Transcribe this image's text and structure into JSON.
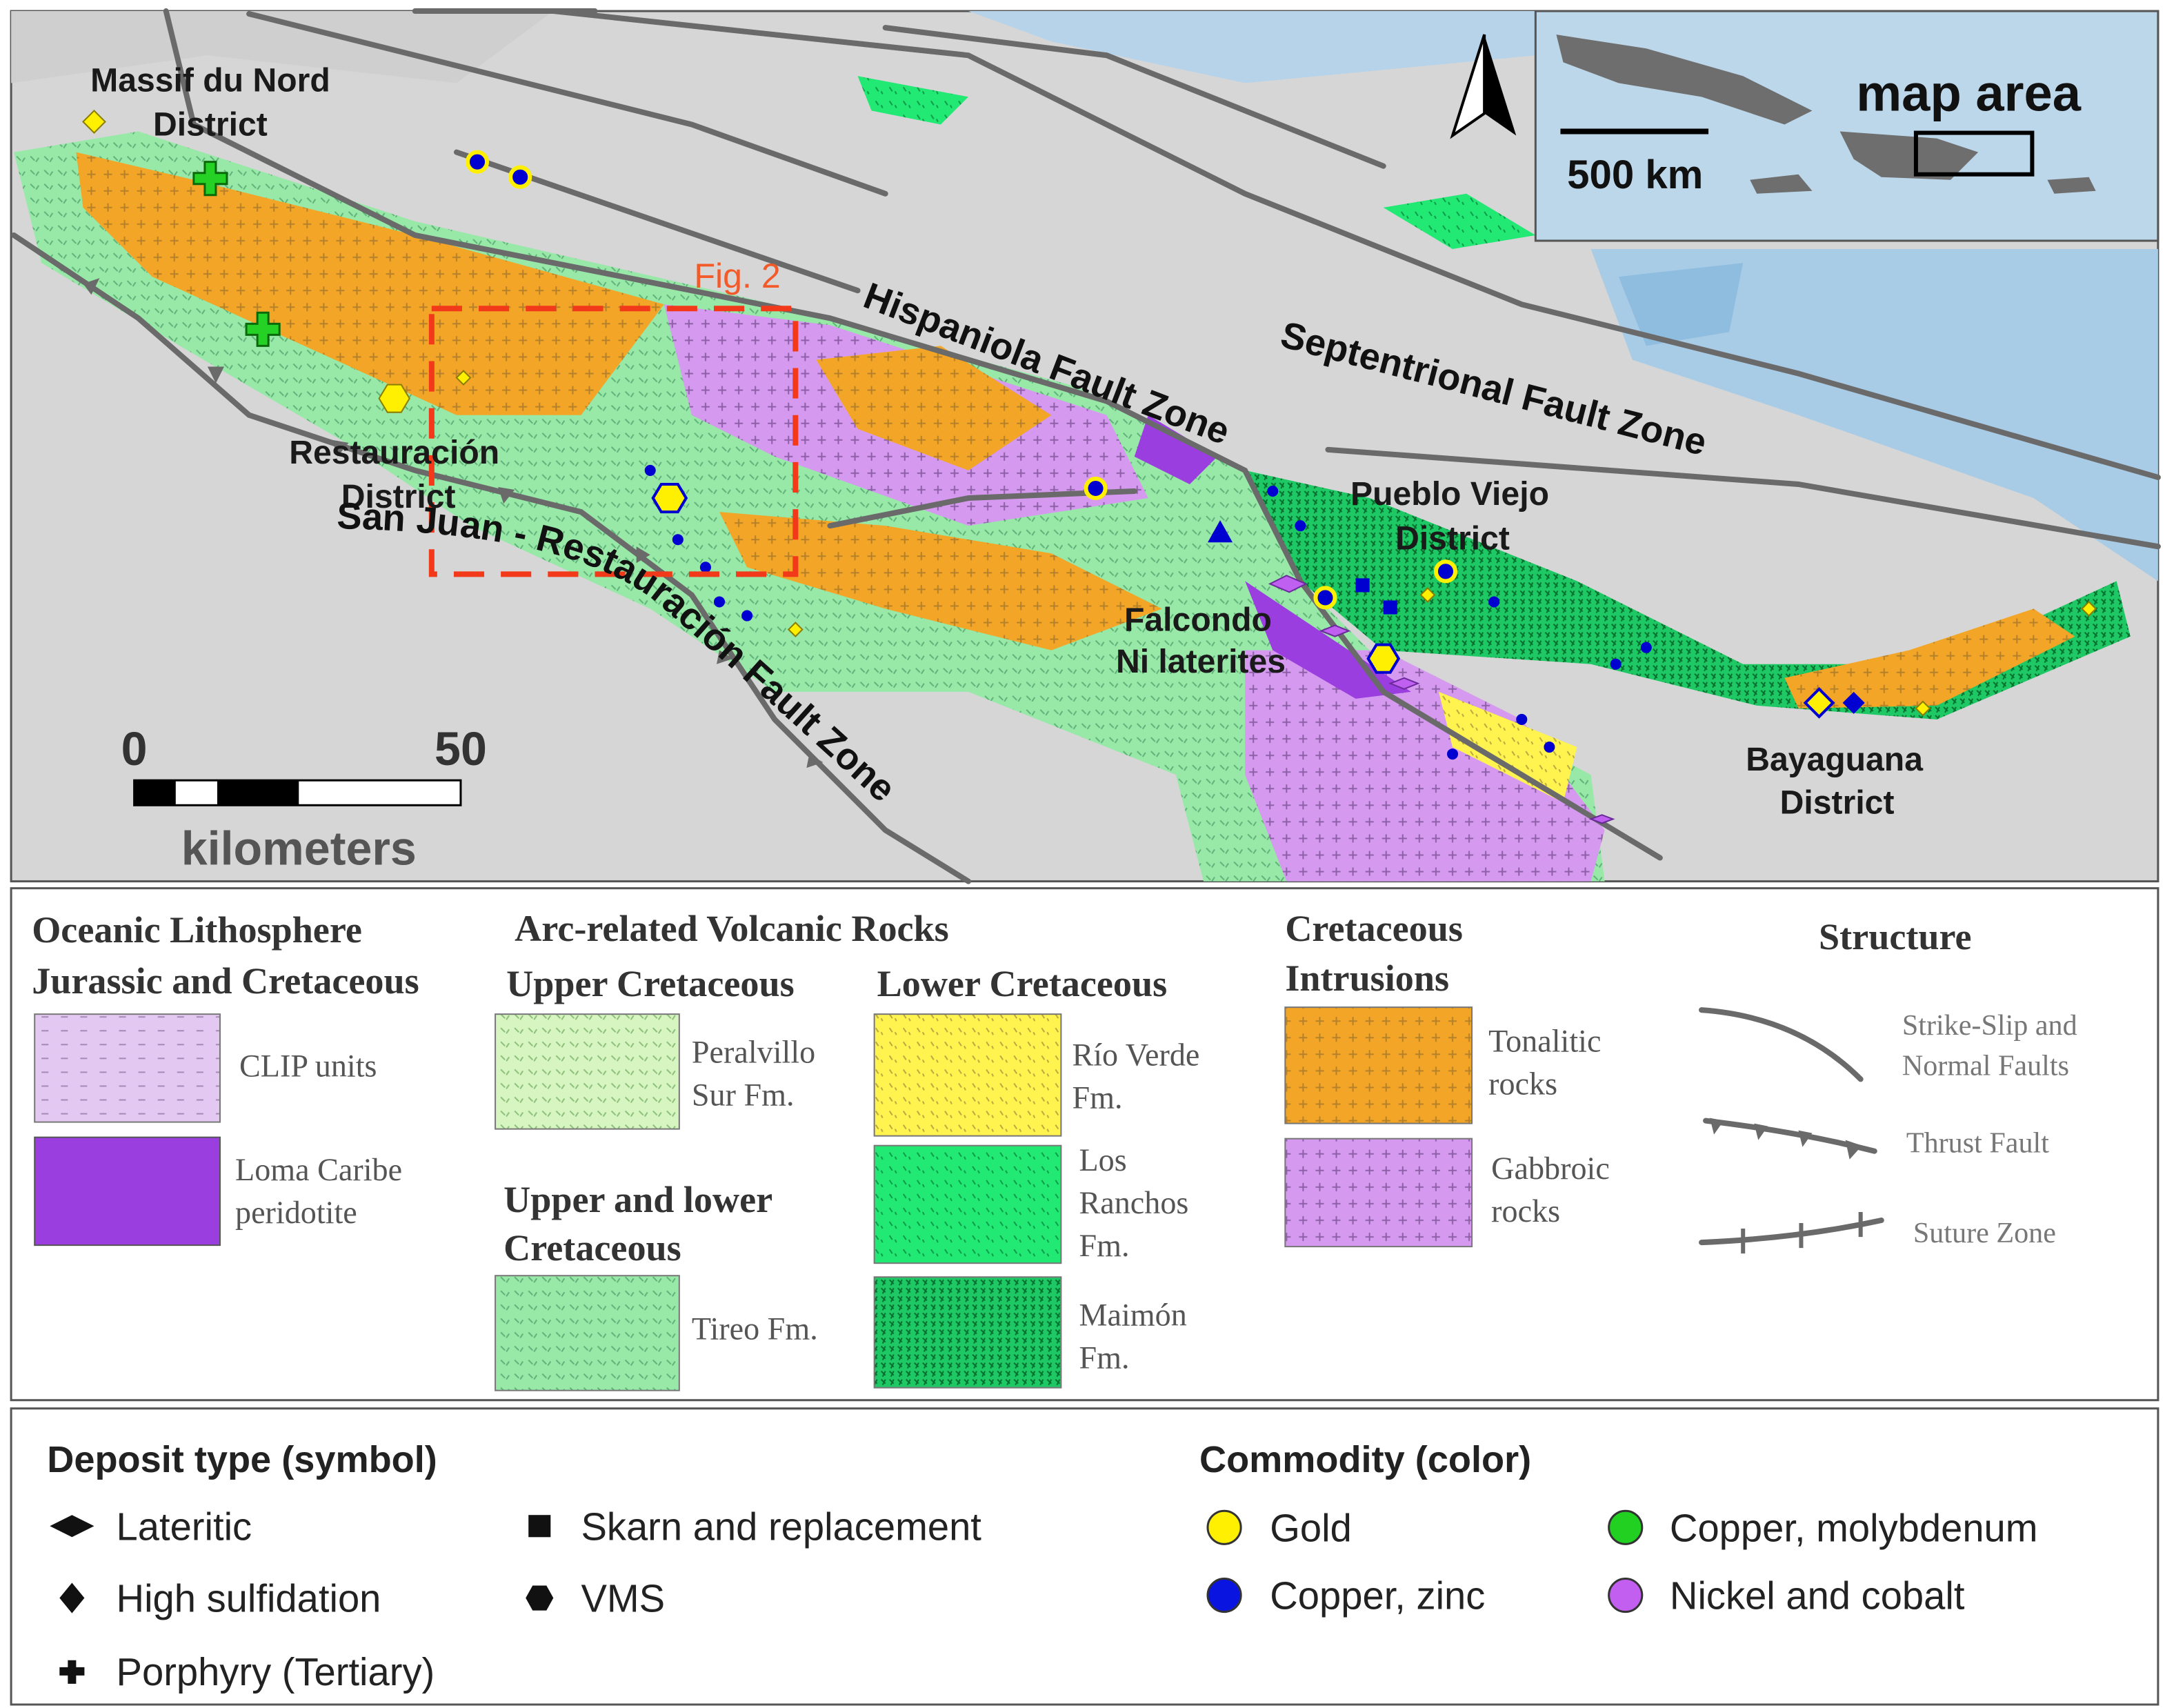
{
  "map": {
    "labels": [
      {
        "lines": [
          "Massif du Nord",
          "District"
        ]
      },
      {
        "lines": [
          "Restauración",
          "District"
        ]
      },
      {
        "lines": [
          "Pueblo Viejo",
          "District"
        ]
      },
      {
        "lines": [
          "Bayaguana",
          "District"
        ]
      },
      {
        "lines": [
          "Falcondo",
          "Ni laterites"
        ]
      }
    ],
    "fig_label": "Fig. 2",
    "faults": [
      "Hispaniola Fault Zone",
      "Septentrional Fault Zone",
      "San Juan - Restauración Fault Zone"
    ],
    "scale_bar": {
      "ticks": [
        "0",
        "50"
      ],
      "unit": "kilometers"
    },
    "inset": {
      "label": "map area",
      "scale": "500 km"
    }
  },
  "legend": {
    "oceanic": {
      "heading": [
        "Oceanic Lithosphere",
        "Jurassic and Cretaceous"
      ],
      "units": [
        {
          "lines": [
            "CLIP units"
          ]
        },
        {
          "lines": [
            "Loma Caribe",
            "peridotite"
          ]
        }
      ]
    },
    "arc": {
      "heading": "Arc-related Volcanic Rocks",
      "upper": {
        "heading": "Upper Cretaceous",
        "units": [
          {
            "lines": [
              "Peralvillo",
              "Sur Fm."
            ]
          }
        ]
      },
      "upper_lower": {
        "heading": [
          "Upper and lower",
          "Cretaceous"
        ],
        "units": [
          {
            "lines": [
              "Tireo Fm."
            ]
          }
        ]
      },
      "lower": {
        "heading": "Lower Cretaceous",
        "units": [
          {
            "lines": [
              "Río Verde",
              "Fm."
            ]
          },
          {
            "lines": [
              "Los",
              "Ranchos",
              "Fm."
            ]
          },
          {
            "lines": [
              "Maimón",
              "Fm."
            ]
          }
        ]
      }
    },
    "intrusions": {
      "heading": [
        "Cretaceous",
        "Intrusions"
      ],
      "units": [
        {
          "lines": [
            "Tonalitic",
            "rocks"
          ]
        },
        {
          "lines": [
            "Gabbroic",
            "rocks"
          ]
        }
      ]
    },
    "structure": {
      "heading": "Structure",
      "items": [
        {
          "lines": [
            "Strike-Slip and",
            "Normal Faults"
          ]
        },
        {
          "lines": [
            "Thrust Fault"
          ]
        },
        {
          "lines": [
            "Suture Zone"
          ]
        }
      ]
    }
  },
  "deposits": {
    "symbol_heading": "Deposit type (symbol)",
    "symbols": [
      "Lateritic",
      "High sulfidation",
      "Porphyry (Tertiary)",
      "Skarn and replacement",
      "VMS"
    ],
    "commodity_heading": "Commodity (color)",
    "commodities": [
      "Gold",
      "Copper, zinc",
      "Copper, molybdenum",
      "Nickel and cobalt"
    ]
  }
}
